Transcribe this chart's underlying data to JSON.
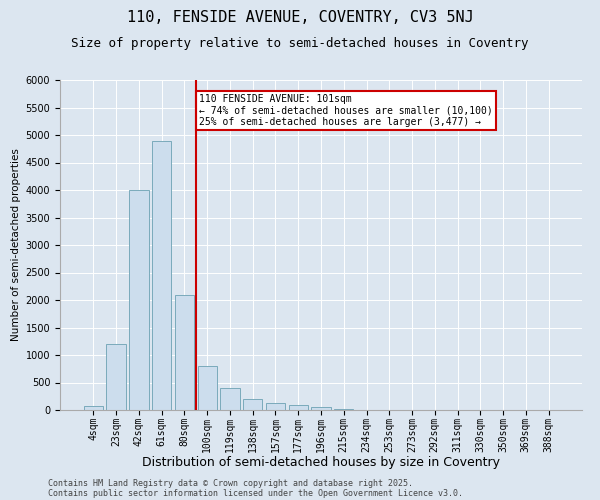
{
  "title_line1": "110, FENSIDE AVENUE, COVENTRY, CV3 5NJ",
  "title_line2": "Size of property relative to semi-detached houses in Coventry",
  "xlabel": "Distribution of semi-detached houses by size in Coventry",
  "ylabel": "Number of semi-detached properties",
  "categories": [
    "4sqm",
    "23sqm",
    "42sqm",
    "61sqm",
    "80sqm",
    "100sqm",
    "119sqm",
    "138sqm",
    "157sqm",
    "177sqm",
    "196sqm",
    "215sqm",
    "234sqm",
    "253sqm",
    "273sqm",
    "292sqm",
    "311sqm",
    "330sqm",
    "350sqm",
    "369sqm",
    "388sqm"
  ],
  "values": [
    75,
    1200,
    4000,
    4900,
    2100,
    800,
    400,
    200,
    120,
    100,
    50,
    20,
    0,
    0,
    0,
    0,
    0,
    0,
    0,
    0,
    0
  ],
  "bar_color": "#ccdded",
  "bar_edge_color": "#7aaabb",
  "vline_color": "#cc0000",
  "annotation_text": "110 FENSIDE AVENUE: 101sqm\n← 74% of semi-detached houses are smaller (10,100)\n25% of semi-detached houses are larger (3,477) →",
  "annotation_box_color": "#ffffff",
  "annotation_box_edge": "#cc0000",
  "ylim": [
    0,
    6000
  ],
  "yticks": [
    0,
    500,
    1000,
    1500,
    2000,
    2500,
    3000,
    3500,
    4000,
    4500,
    5000,
    5500,
    6000
  ],
  "background_color": "#dce6f0",
  "plot_background": "#dce6f0",
  "footer_line1": "Contains HM Land Registry data © Crown copyright and database right 2025.",
  "footer_line2": "Contains public sector information licensed under the Open Government Licence v3.0.",
  "title_fontsize": 11,
  "subtitle_fontsize": 9,
  "xlabel_fontsize": 9,
  "ylabel_fontsize": 7.5,
  "tick_fontsize": 7,
  "annotation_fontsize": 7,
  "footer_fontsize": 6
}
